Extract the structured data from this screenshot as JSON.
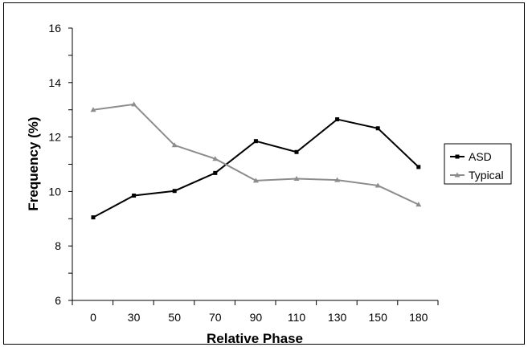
{
  "chart_data": {
    "type": "line",
    "title": "",
    "xlabel": "Relative Phase",
    "ylabel": "Frequency (%)",
    "categories": [
      "0",
      "30",
      "50",
      "70",
      "90",
      "110",
      "130",
      "150",
      "180"
    ],
    "ylim": [
      6,
      16
    ],
    "yticks": [
      6,
      8,
      10,
      12,
      14,
      16
    ],
    "grid": false,
    "legend_position": "right",
    "series": [
      {
        "name": "ASD",
        "color": "#000000",
        "marker": "square",
        "values": [
          9.05,
          9.85,
          10.02,
          10.68,
          11.85,
          11.45,
          12.65,
          12.32,
          10.9
        ]
      },
      {
        "name": "Typical",
        "color": "#8c8c8c",
        "marker": "triangle",
        "values": [
          13.0,
          13.2,
          11.7,
          11.2,
          10.4,
          10.47,
          10.42,
          10.22,
          9.52
        ]
      }
    ]
  }
}
